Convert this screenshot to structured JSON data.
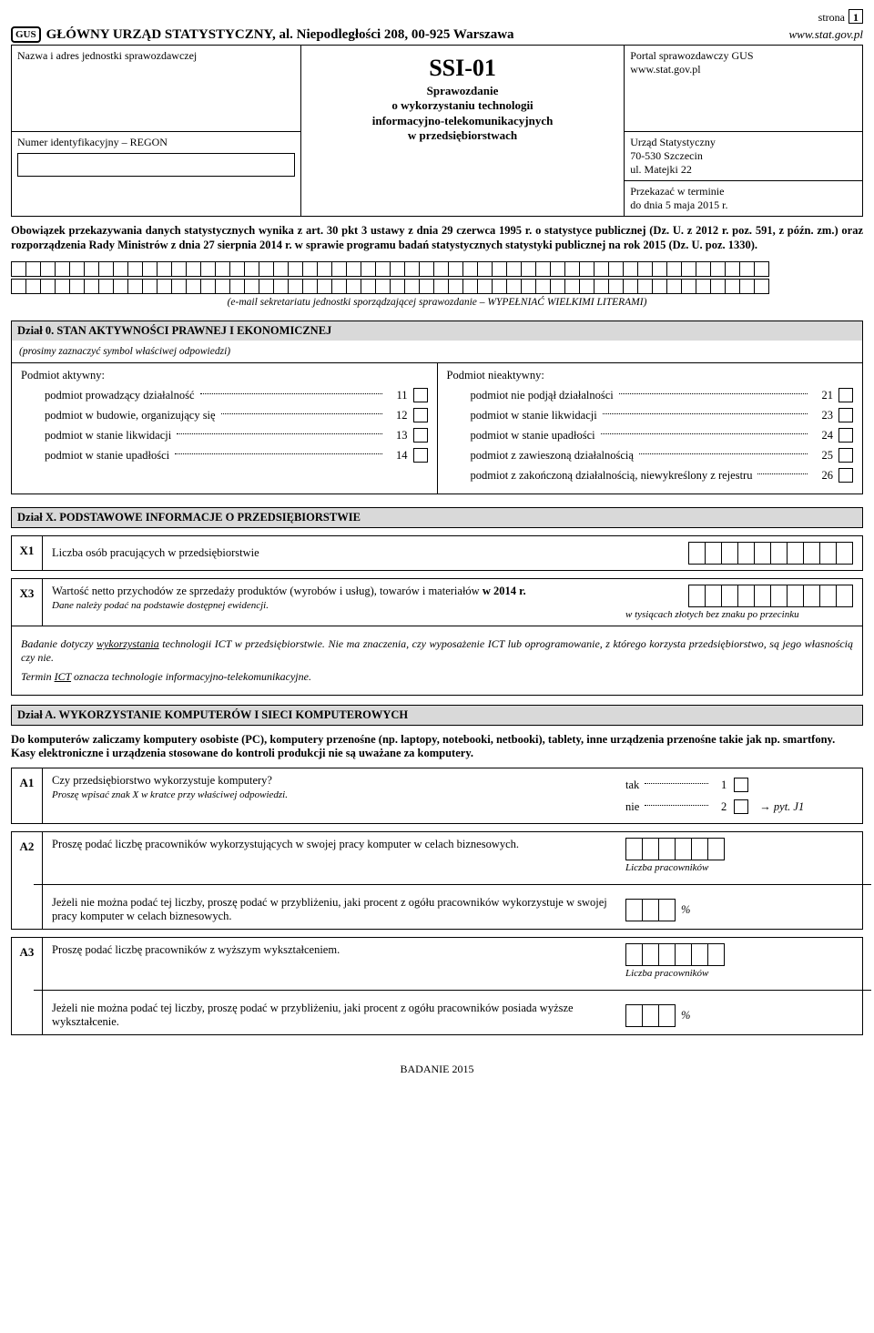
{
  "page": {
    "label": "strona",
    "num": "1"
  },
  "top": {
    "logo": "GUS",
    "title": "GŁÓWNY URZĄD STATYSTYCZNY, al. Niepodległości 208, 00-925 Warszawa",
    "url": "www.stat.gov.pl"
  },
  "header": {
    "left_top": "Nazwa i adres jednostki sprawozdawczej",
    "left_bot": "Numer identyfikacyjny – REGON",
    "mid_code": "SSI-01",
    "mid_sub": "Sprawozdanie\no wykorzystaniu technologii\ninformacyjno-telekomunikacyjnych\nw przedsiębiorstwach",
    "r1a": "Portal sprawozdawczy GUS",
    "r1b": "www.stat.gov.pl",
    "r2": "Urząd Statystyczny\n70-530 Szczecin\nul. Matejki 22",
    "r3": "Przekazać w terminie\ndo dnia 5 maja 2015 r."
  },
  "legal": "Obowiązek przekazywania danych statystycznych wynika z art. 30 pkt 3 ustawy z dnia 29 czerwca 1995 r. o statystyce publicznej (Dz. U. z 2012 r. poz. 591, z późn. zm.) oraz rozporządzenia Rady Ministrów z dnia 27 sierpnia 2014 r. w sprawie programu badań statystycznych statystyki publicznej na rok 2015 (Dz. U. poz. 1330).",
  "email_caption": "(e-mail sekretariatu jednostki sporządzającej sprawozdanie – WYPEŁNIAĆ WIELKIMI LITERAMI)",
  "dzial0": {
    "title_a": "Dział 0.",
    "title_b": "STAN AKTYWNOŚCI PRAWNEJ I EKONOMICZNEJ",
    "sub": "(prosimy zaznaczyć symbol właściwej odpowiedzi)",
    "left_title": "Podmiot aktywny:",
    "right_title": "Podmiot nieaktywny:",
    "left": [
      {
        "t": "podmiot prowadzący działalność",
        "n": "11"
      },
      {
        "t": "podmiot w budowie, organizujący się",
        "n": "12"
      },
      {
        "t": "podmiot w stanie likwidacji",
        "n": "13"
      },
      {
        "t": "podmiot w stanie upadłości",
        "n": "14"
      }
    ],
    "right": [
      {
        "t": "podmiot nie podjął działalności",
        "n": "21"
      },
      {
        "t": "podmiot w stanie likwidacji",
        "n": "23"
      },
      {
        "t": "podmiot w stanie upadłości",
        "n": "24"
      },
      {
        "t": "podmiot z zawieszoną działalnością",
        "n": "25"
      },
      {
        "t": "podmiot z zakończoną działalnością, niewykreślony z rejestru",
        "n": "26"
      }
    ]
  },
  "dzialX": {
    "title_a": "Dział X.",
    "title_b": "PODSTAWOWE INFORMACJE O PRZEDSIĘBIORSTWIE",
    "x1": {
      "code": "X1",
      "text": "Liczba osób pracujących w przedsiębiorstwie",
      "boxcount": 10
    },
    "x3": {
      "code": "X3",
      "line1": "Wartość netto przychodów ze sprzedaży produktów (wyrobów i usług), towarów i materiałów ",
      "line1b": "w 2014 r.",
      "line2": "Dane należy podać na podstawie dostępnej ewidencji.",
      "rnote": "w tysiącach złotych bez znaku po przecinku",
      "boxcount": 10,
      "below": "Badanie dotyczy wykorzystania technologii ICT w przedsiębiorstwie. Nie ma znaczenia, czy wyposażenie ICT lub oprogramowanie, z którego korzysta przedsiębiorstwo, są jego własnością czy nie.",
      "below_u": "wykorzystania",
      "term": "Termin ICT oznacza technologie informacyjno-telekomunikacyjne.",
      "term_u": "ICT"
    }
  },
  "dzialA": {
    "title_a": "Dział A.",
    "title_b": "WYKORZYSTANIE KOMPUTERÓW I SIECI KOMPUTEROWYCH",
    "intro": "Do komputerów zaliczamy komputery osobiste (PC), komputery przenośne (np. laptopy, notebooki, netbooki), tablety, inne urządzenia przenośne takie jak np. smartfony.\nKasy elektroniczne i urządzenia stosowane do kontroli produkcji nie są uważane za komputery.",
    "a1": {
      "code": "A1",
      "q": "Czy przedsiębiorstwo wykorzystuje komputery?",
      "sub": "Proszę wpisać znak X w kratce przy właściwej odpowiedzi.",
      "yes": "tak",
      "yn": "1",
      "no": "nie",
      "nn": "2",
      "goto": "→ pyt. J1"
    },
    "a2": {
      "code": "A2",
      "q1": "Proszę podać liczbę pracowników wykorzystujących w swojej pracy komputer w celach biznesowych.",
      "cap1": "Liczba pracowników",
      "boxcount1": 6,
      "q2": "Jeżeli nie można podać tej liczby, proszę podać w przybliżeniu, jaki procent z ogółu pracowników wykorzystuje w swojej pracy komputer w celach biznesowych.",
      "pct": "%",
      "boxcount2": 3
    },
    "a3": {
      "code": "A3",
      "q1": "Proszę podać liczbę pracowników z wyższym wykształceniem.",
      "cap1": "Liczba pracowników",
      "boxcount1": 6,
      "q2": "Jeżeli nie można podać tej liczby, proszę podać w przybliżeniu, jaki procent z ogółu pracowników posiada wyższe wykształcenie.",
      "pct": "%",
      "boxcount2": 3
    }
  },
  "footer": "BADANIE 2015"
}
